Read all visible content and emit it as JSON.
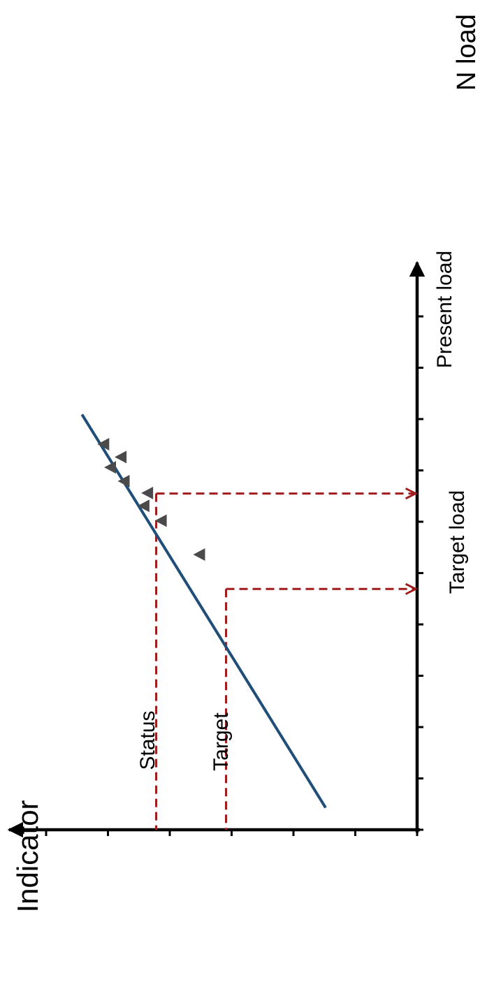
{
  "colors": {
    "axis": "#000000",
    "fit_line": "#1f4e79",
    "guide": "#a01c1c",
    "marker": "#4a4a4a"
  },
  "labels": {
    "x_axis": "N load",
    "y_axis": "Indicator",
    "present_load": "Present load",
    "target_load": "Target load",
    "status": "Status",
    "target": "Target"
  },
  "chart_data": {
    "type": "scatter",
    "title": "",
    "xlabel": "N load",
    "ylabel": "Indicator",
    "orientation": "rotated 90° counter-clockwise",
    "grid": false,
    "xlim": [
      0,
      10
    ],
    "ylim": [
      0,
      6.5
    ],
    "x_ticks": [
      0,
      1,
      2,
      3,
      4,
      5,
      6,
      7,
      8,
      9,
      10
    ],
    "y_ticks": [
      0,
      1,
      2,
      3,
      4,
      5,
      6,
      7
    ],
    "points": [
      {
        "x": 5.36,
        "y": 3.52
      },
      {
        "x": 6.02,
        "y": 4.14
      },
      {
        "x": 6.31,
        "y": 4.42
      },
      {
        "x": 6.56,
        "y": 4.36
      },
      {
        "x": 6.79,
        "y": 4.74
      },
      {
        "x": 7.06,
        "y": 4.96
      },
      {
        "x": 7.26,
        "y": 4.79
      },
      {
        "x": 7.51,
        "y": 5.07
      }
    ],
    "fit_line": {
      "x": [
        0.43,
        8.09
      ],
      "y": [
        1.48,
        5.42
      ]
    },
    "markers": {
      "present_load": {
        "x": 6.55,
        "y": 4.22
      },
      "target_load": {
        "x": 4.69,
        "y": 3.09
      }
    }
  }
}
